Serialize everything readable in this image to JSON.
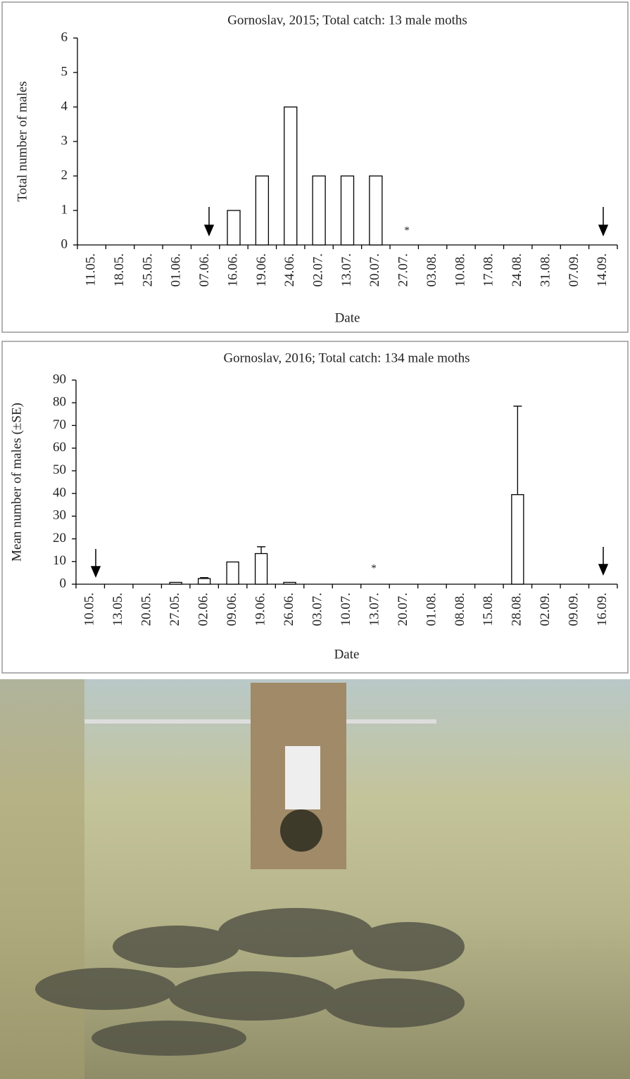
{
  "chart_data": [
    {
      "type": "bar",
      "title": "Gornoslav, 2015; Total catch: 13 male moths",
      "y_label": "Total number of males",
      "x_label": "Date",
      "categories": [
        "11.05.",
        "18.05.",
        "25.05.",
        "01.06.",
        "07.06.",
        "16.06.",
        "19.06.",
        "24.06.",
        "02.07.",
        "13.07.",
        "20.07.",
        "27.07.",
        "03.08.",
        "10.08.",
        "17.08.",
        "24.08.",
        "31.08.",
        "07.09.",
        "14.09."
      ],
      "values": [
        0,
        0,
        0,
        0,
        0,
        1,
        2,
        4,
        2,
        2,
        2,
        0,
        0,
        0,
        0,
        0,
        0,
        0,
        0
      ],
      "color": "#ffffff",
      "ylim": [
        0,
        6
      ],
      "yticks": [
        0,
        1,
        2,
        3,
        4,
        5,
        6
      ],
      "annotation": "*"
    },
    {
      "type": "bar",
      "title": "Gornoslav, 2016;  Total catch: 134 male moths",
      "y_label": "Mean number of males  (±SE)",
      "x_label": "Date",
      "categories": [
        "10.05.",
        "13.05.",
        "20.05.",
        "27.05.",
        "02.06.",
        "09.06.",
        "19.06.",
        "26.06.",
        "03.07.",
        "10.07.",
        "13.07.",
        "20.07.",
        "01.08.",
        "08.08.",
        "15.08.",
        "28.08.",
        "02.09.",
        "09.09.",
        "16.09."
      ],
      "values": [
        0,
        0,
        0,
        0.8,
        2.5,
        9.8,
        13.5,
        0.8,
        0,
        0,
        0,
        0,
        0,
        0,
        0,
        39.5,
        0,
        0,
        0
      ],
      "errors": [
        null,
        null,
        null,
        null,
        0.4,
        null,
        3,
        null,
        null,
        null,
        null,
        null,
        null,
        null,
        null,
        39,
        null,
        null,
        null
      ],
      "color": "#ffffff",
      "ylim": [
        0,
        90
      ],
      "yticks": [
        0,
        10,
        20,
        30,
        40,
        50,
        60,
        70,
        80,
        90
      ],
      "annotation": "*"
    }
  ]
}
